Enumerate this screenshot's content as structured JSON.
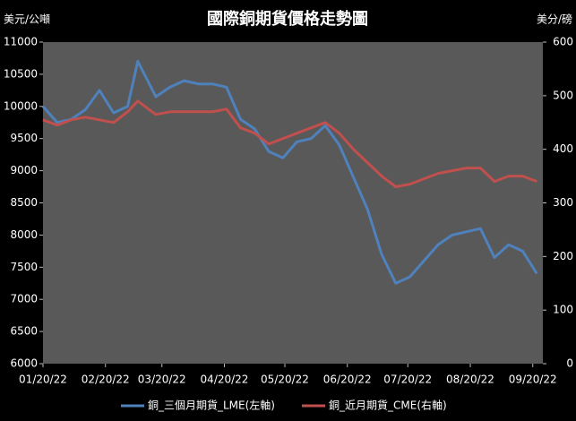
{
  "chart_data": {
    "type": "line",
    "title": "國際銅期貨價格走勢圖",
    "y_label": "美元/公噸",
    "y2_label": "美分/磅",
    "x": [
      "2022-01-20",
      "2022-01-27",
      "2022-02-03",
      "2022-02-10",
      "2022-02-17",
      "2022-02-24",
      "2022-03-03",
      "2022-03-08",
      "2022-03-17",
      "2022-03-24",
      "2022-03-31",
      "2022-04-07",
      "2022-04-14",
      "2022-04-21",
      "2022-04-28",
      "2022-05-05",
      "2022-05-12",
      "2022-05-19",
      "2022-05-26",
      "2022-06-02",
      "2022-06-09",
      "2022-06-16",
      "2022-06-23",
      "2022-06-30",
      "2022-07-07",
      "2022-07-14",
      "2022-07-21",
      "2022-07-28",
      "2022-08-04",
      "2022-08-11",
      "2022-08-18",
      "2022-08-25",
      "2022-09-01",
      "2022-09-08",
      "2022-09-15",
      "2022-09-22"
    ],
    "xlim": [
      "2022-01-20",
      "2022-09-25"
    ],
    "xticks": [
      {
        "value": "2022-01-20",
        "label": "01/20/22"
      },
      {
        "value": "2022-02-20",
        "label": "02/20/22"
      },
      {
        "value": "2022-03-20",
        "label": "03/20/22"
      },
      {
        "value": "2022-04-20",
        "label": "04/20/22"
      },
      {
        "value": "2022-05-20",
        "label": "05/20/22"
      },
      {
        "value": "2022-06-20",
        "label": "06/20/22"
      },
      {
        "value": "2022-07-20",
        "label": "07/20/22"
      },
      {
        "value": "2022-08-20",
        "label": "08/20/22"
      },
      {
        "value": "2022-09-20",
        "label": "09/20/22"
      }
    ],
    "ylim": [
      6000,
      11000
    ],
    "yticks": [
      6000,
      6500,
      7000,
      7500,
      8000,
      8500,
      9000,
      9500,
      10000,
      10500,
      11000
    ],
    "y2lim": [
      0,
      600
    ],
    "y2ticks": [
      0,
      100,
      200,
      300,
      400,
      500,
      600
    ],
    "legend": "bottom",
    "series": [
      {
        "name": "銅_三個月期貨_LME(左軸)",
        "color": "#4f81bd",
        "values": [
          10000,
          9750,
          9800,
          9950,
          10250,
          9900,
          10000,
          10700,
          10150,
          10300,
          10400,
          10350,
          10350,
          10300,
          9800,
          9650,
          9300,
          9200,
          9450,
          9500,
          9700,
          9400,
          8900,
          8400,
          7700,
          7250,
          7350,
          7600,
          7850,
          8000,
          8050,
          8100,
          7650,
          7850,
          7750,
          7400
        ]
      },
      {
        "name": "銅_近月期貨_CME(右軸)",
        "color": "#c0504d",
        "axis": "y2",
        "values": [
          455,
          445,
          455,
          460,
          455,
          450,
          470,
          490,
          465,
          470,
          470,
          470,
          470,
          475,
          440,
          430,
          410,
          420,
          430,
          440,
          450,
          430,
          400,
          375,
          350,
          330,
          335,
          345,
          355,
          360,
          365,
          365,
          340,
          350,
          350,
          340
        ]
      }
    ]
  }
}
